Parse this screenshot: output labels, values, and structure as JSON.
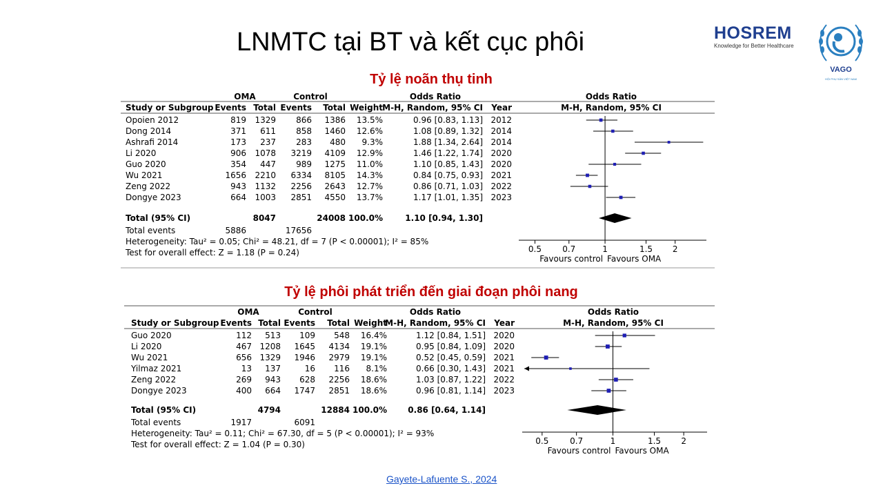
{
  "slide": {
    "title": "LNMTC tại BT và kết cục phôi",
    "citation": "Gayete-Lafuente  S., 2024"
  },
  "logos": {
    "hosrem_name": "HOSREM",
    "hosrem_tagline": "Knowledge for Better Healthcare",
    "vago_name": "VAGO",
    "vago_subtitle": "HỘI PHỤ SẢN VIỆT NAM"
  },
  "colors": {
    "title_red": "#c00000",
    "marker_blue": "#1f1fb4",
    "link_blue": "#1a53c8"
  },
  "chart_data": [
    {
      "type": "forest",
      "title": "Tỷ lệ noãn thụ tinh",
      "header": {
        "group1": "OMA",
        "group2": "Control",
        "or_group": "Odds Ratio",
        "plot_group": "Odds Ratio",
        "study": "Study or Subgroup",
        "events": "Events",
        "total": "Total",
        "weight": "Weight",
        "method": "M-H, Random, 95% CI",
        "year": "Year",
        "plot_method": "M-H, Random, 95% CI"
      },
      "studies": [
        {
          "name": "Opoien 2012",
          "e1": "819",
          "n1": "1329",
          "e2": "866",
          "n2": "1386",
          "weight": "13.5%",
          "ci": "0.96 [0.83, 1.13]",
          "year": "2012",
          "or": 0.96,
          "lo": 0.83,
          "hi": 1.13,
          "w": 13.5
        },
        {
          "name": "Dong 2014",
          "e1": "371",
          "n1": "611",
          "e2": "858",
          "n2": "1460",
          "weight": "12.6%",
          "ci": "1.08 [0.89, 1.32]",
          "year": "2014",
          "or": 1.08,
          "lo": 0.89,
          "hi": 1.32,
          "w": 12.6
        },
        {
          "name": "Ashrafi 2014",
          "e1": "173",
          "n1": "237",
          "e2": "283",
          "n2": "480",
          "weight": "9.3%",
          "ci": "1.88 [1.34, 2.64]",
          "year": "2014",
          "or": 1.88,
          "lo": 1.34,
          "hi": 2.64,
          "w": 9.3
        },
        {
          "name": "Li 2020",
          "e1": "906",
          "n1": "1078",
          "e2": "3219",
          "n2": "4109",
          "weight": "12.9%",
          "ci": "1.46 [1.22, 1.74]",
          "year": "2020",
          "or": 1.46,
          "lo": 1.22,
          "hi": 1.74,
          "w": 12.9
        },
        {
          "name": "Guo 2020",
          "e1": "354",
          "n1": "447",
          "e2": "989",
          "n2": "1275",
          "weight": "11.0%",
          "ci": "1.10 [0.85, 1.43]",
          "year": "2020",
          "or": 1.1,
          "lo": 0.85,
          "hi": 1.43,
          "w": 11.0
        },
        {
          "name": "Wu 2021",
          "e1": "1656",
          "n1": "2210",
          "e2": "6334",
          "n2": "8105",
          "weight": "14.3%",
          "ci": "0.84 [0.75, 0.93]",
          "year": "2021",
          "or": 0.84,
          "lo": 0.75,
          "hi": 0.93,
          "w": 14.3
        },
        {
          "name": "Zeng 2022",
          "e1": "943",
          "n1": "1132",
          "e2": "2256",
          "n2": "2643",
          "weight": "12.7%",
          "ci": "0.86 [0.71, 1.03]",
          "year": "2022",
          "or": 0.86,
          "lo": 0.71,
          "hi": 1.03,
          "w": 12.7
        },
        {
          "name": "Dongye 2023",
          "e1": "664",
          "n1": "1003",
          "e2": "2851",
          "n2": "4550",
          "weight": "13.7%",
          "ci": "1.17 [1.01, 1.35]",
          "year": "2023",
          "or": 1.17,
          "lo": 1.01,
          "hi": 1.35,
          "w": 13.7
        }
      ],
      "total": {
        "label": "Total (95% CI)",
        "n1": "8047",
        "n2": "24008",
        "weight": "100.0%",
        "ci": "1.10 [0.94, 1.30]",
        "or": 1.1,
        "lo": 0.94,
        "hi": 1.3
      },
      "total_events": {
        "label": "Total events",
        "e1": "5886",
        "e2": "17656"
      },
      "heterogeneity": "Heterogeneity: Tau² = 0.05; Chi² = 48.21, df = 7 (P < 0.00001); I² = 85%",
      "overall_test": "Test for overall effect: Z = 1.18 (P = 0.24)",
      "axis": {
        "ticks": [
          0.5,
          0.7,
          1,
          1.5,
          2
        ],
        "tick_labels": [
          "0.5",
          "0.7",
          "1",
          "1.5",
          "2"
        ],
        "scale": "log",
        "range": [
          0.45,
          2.8
        ],
        "favours_left": "Favours control",
        "favours_right": "Favours OMA"
      }
    },
    {
      "type": "forest",
      "title": "Tỷ lệ phôi phát triển đến giai đoạn phôi nang",
      "header": {
        "group1": "OMA",
        "group2": "Control",
        "or_group": "Odds Ratio",
        "plot_group": "Odds Ratio",
        "study": "Study or Subgroup",
        "events": "Events",
        "total": "Total",
        "weight": "Weight",
        "method": "M-H, Random, 95% CI",
        "year": "Year",
        "plot_method": "M-H, Random, 95% CI"
      },
      "studies": [
        {
          "name": "Guo 2020",
          "e1": "112",
          "n1": "513",
          "e2": "109",
          "n2": "548",
          "weight": "16.4%",
          "ci": "1.12 [0.84, 1.51]",
          "year": "2020",
          "or": 1.12,
          "lo": 0.84,
          "hi": 1.51,
          "w": 16.4
        },
        {
          "name": "Li 2020",
          "e1": "467",
          "n1": "1208",
          "e2": "1645",
          "n2": "4134",
          "weight": "19.1%",
          "ci": "0.95 [0.84, 1.09]",
          "year": "2020",
          "or": 0.95,
          "lo": 0.84,
          "hi": 1.09,
          "w": 19.1
        },
        {
          "name": "Wu 2021",
          "e1": "656",
          "n1": "1329",
          "e2": "1946",
          "n2": "2979",
          "weight": "19.1%",
          "ci": "0.52 [0.45, 0.59]",
          "year": "2021",
          "or": 0.52,
          "lo": 0.45,
          "hi": 0.59,
          "w": 19.1
        },
        {
          "name": "Yilmaz 2021",
          "e1": "13",
          "n1": "137",
          "e2": "16",
          "n2": "116",
          "weight": "8.1%",
          "ci": "0.66 [0.30, 1.43]",
          "year": "2021",
          "or": 0.66,
          "lo": 0.3,
          "hi": 1.43,
          "w": 8.1
        },
        {
          "name": "Zeng 2022",
          "e1": "269",
          "n1": "943",
          "e2": "628",
          "n2": "2256",
          "weight": "18.6%",
          "ci": "1.03 [0.87, 1.22]",
          "year": "2022",
          "or": 1.03,
          "lo": 0.87,
          "hi": 1.22,
          "w": 18.6
        },
        {
          "name": "Dongye 2023",
          "e1": "400",
          "n1": "664",
          "e2": "1747",
          "n2": "2851",
          "weight": "18.6%",
          "ci": "0.96 [0.81, 1.14]",
          "year": "2023",
          "or": 0.96,
          "lo": 0.81,
          "hi": 1.14,
          "w": 18.6
        }
      ],
      "total": {
        "label": "Total (95% CI)",
        "n1": "4794",
        "n2": "12884",
        "weight": "100.0%",
        "ci": "0.86 [0.64, 1.14]",
        "or": 0.86,
        "lo": 0.64,
        "hi": 1.14
      },
      "total_events": {
        "label": "Total events",
        "e1": "1917",
        "e2": "6091"
      },
      "heterogeneity": "Heterogeneity: Tau² = 0.11; Chi² = 67.30, df = 5 (P < 0.00001); I² = 93%",
      "overall_test": "Test for overall effect: Z = 1.04 (P = 0.30)",
      "axis": {
        "ticks": [
          0.5,
          0.7,
          1,
          1.5,
          2
        ],
        "tick_labels": [
          "0.5",
          "0.7",
          "1",
          "1.5",
          "2"
        ],
        "scale": "log",
        "range": [
          0.42,
          2.6
        ],
        "favours_left": "Favours control",
        "favours_right": "Favours OMA"
      }
    }
  ]
}
